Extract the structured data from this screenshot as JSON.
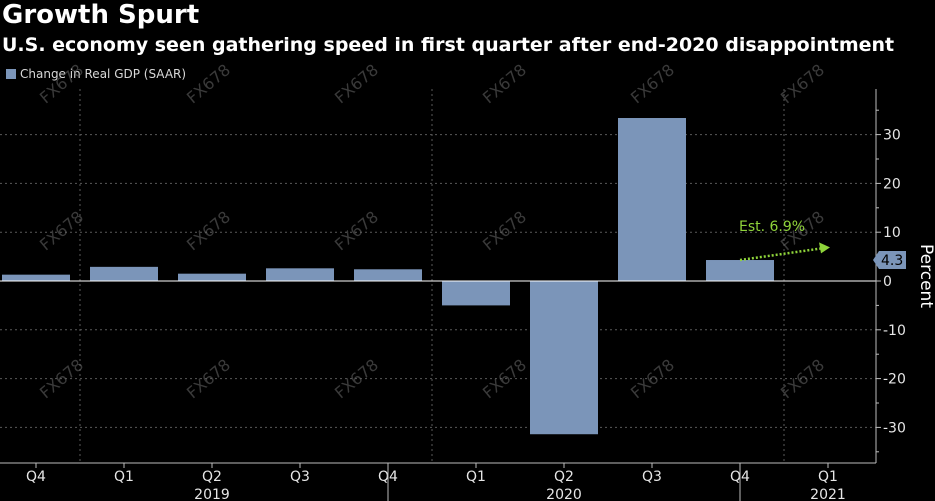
{
  "title": "Growth Spurt",
  "subtitle": "U.S. economy seen gathering speed in first quarter after end-2020 disappointment",
  "watermark": "FX678",
  "colors": {
    "background": "#000000",
    "bar": "#7b95b9",
    "estimate": "#8fd43a",
    "gridline": "#5a5a5a",
    "text": "#ffffff"
  },
  "chart_data": {
    "type": "bar",
    "legend": [
      "Change in Real GDP (SAAR)"
    ],
    "legend_position": "top-left",
    "categories": [
      "Q4",
      "Q1",
      "Q2",
      "Q3",
      "Q4",
      "Q1",
      "Q2",
      "Q3",
      "Q4",
      "Q1"
    ],
    "year_labels": [
      {
        "label": "2019",
        "category_index": 2
      },
      {
        "label": "2020",
        "category_index": 6
      },
      {
        "label": "2021",
        "category_index": 9
      }
    ],
    "series": [
      {
        "name": "Change in Real GDP (SAAR)",
        "values": [
          1.3,
          2.9,
          1.5,
          2.6,
          2.4,
          -5.0,
          -31.4,
          33.4,
          4.3,
          null
        ]
      }
    ],
    "estimate": {
      "label": "Est. 6.9%",
      "from_category_index": 8,
      "from_value": 4.3,
      "to_category_index": 9,
      "to_value": 6.9
    },
    "last_value_label": "4.3",
    "ylabel": "Percent",
    "ylim": [
      -37,
      39
    ],
    "y_ticks": [
      30,
      20,
      10,
      0,
      -10,
      -20,
      -30
    ],
    "y_tick_labels": [
      "30",
      "20",
      "10",
      "0",
      "-10",
      "-20",
      "-30"
    ],
    "y_axis_position": "right",
    "grid": true
  }
}
